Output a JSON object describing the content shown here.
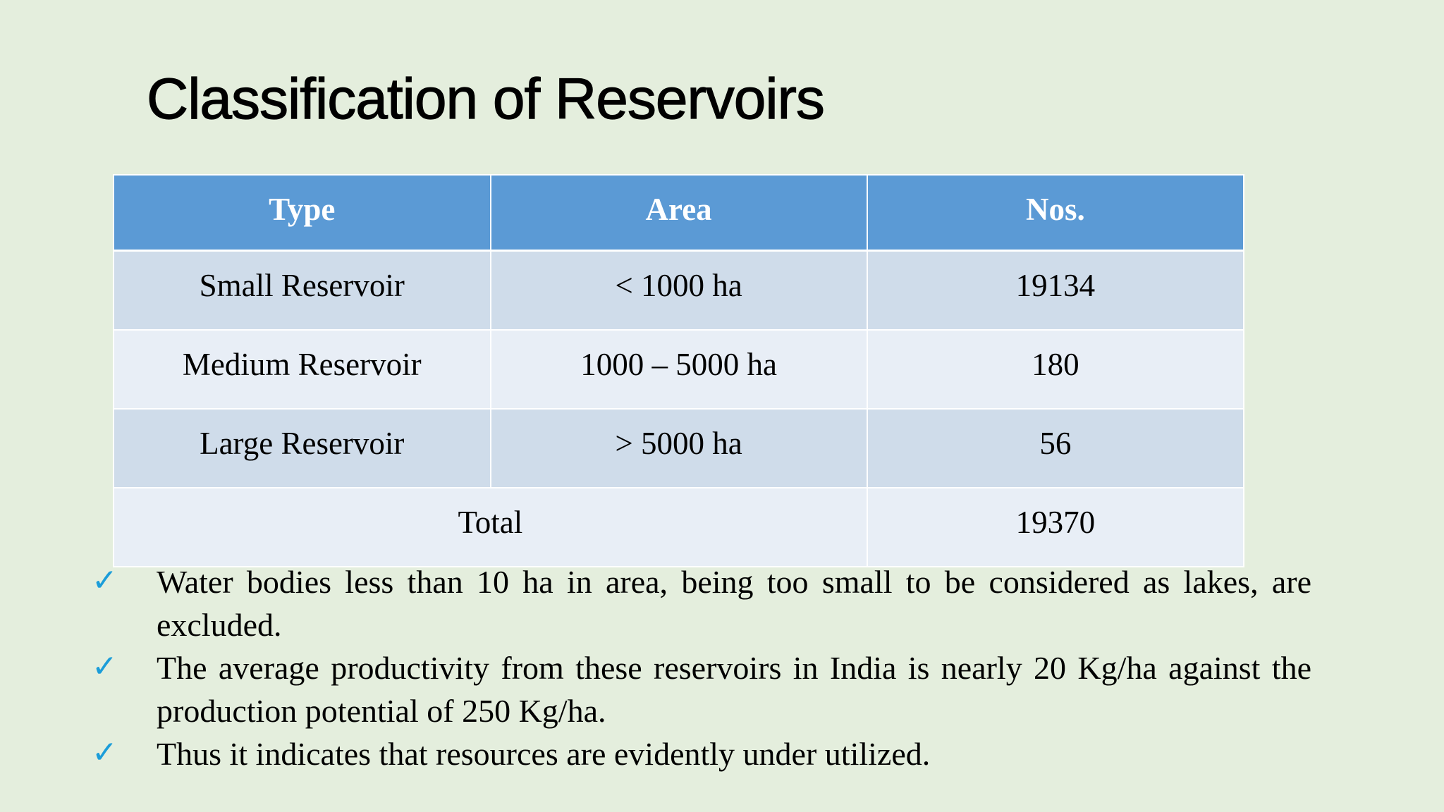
{
  "slide": {
    "title": "Classification of Reservoirs"
  },
  "table": {
    "headers": [
      "Type",
      "Area",
      "Nos."
    ],
    "rows": [
      [
        "Small Reservoir",
        "< 1000 ha",
        "19134"
      ],
      [
        "Medium Reservoir",
        "1000 – 5000 ha",
        "180"
      ],
      [
        "Large Reservoir",
        "> 5000 ha",
        "56"
      ]
    ],
    "total": {
      "label": "Total",
      "value": "19370"
    },
    "colors": {
      "header_bg": "#5b9ad5",
      "row_dark": "#cfdcea",
      "row_light": "#e8eef6"
    }
  },
  "bullets": {
    "icon": "check-icon",
    "icon_color": "#1b9dd9",
    "items": [
      "Water bodies less than 10 ha in area, being too small to be considered as lakes, are excluded.",
      "The average productivity from these reservoirs in India is nearly 20 Kg/ha against the production potential of 250 Kg/ha.",
      "Thus it indicates that resources are evidently under utilized."
    ]
  },
  "background_color": "#e4eedd"
}
